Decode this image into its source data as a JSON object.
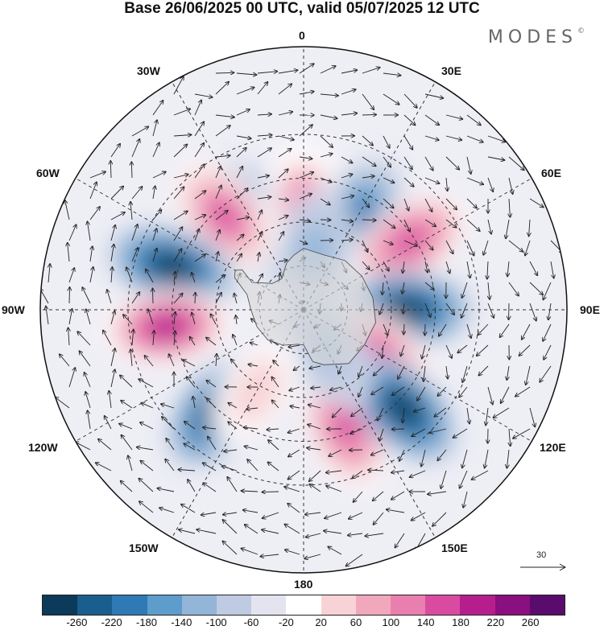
{
  "title": "Base 26/06/2025 00 UTC, valid 05/07/2025 12 UTC",
  "brand": "MODES",
  "brand_mark": "©",
  "longitude_labels": {
    "top": "0",
    "bottom": "180",
    "left": "90W",
    "right": "90E",
    "upper_left_1": "30W",
    "upper_left_2": "60W",
    "upper_right_1": "30E",
    "upper_right_2": "60E",
    "lower_left_1": "120W",
    "lower_left_2": "150W",
    "lower_right_1": "120E",
    "lower_right_2": "150E"
  },
  "wind_scale": {
    "label": "30"
  },
  "colorbar": {
    "colors": [
      "#0c3a5a",
      "#1a5e8e",
      "#2f7ab4",
      "#5d9ccb",
      "#93b6d8",
      "#bfcbe2",
      "#e4e4f0",
      "#ffffff",
      "#f8d3d6",
      "#f1a8bc",
      "#e97fae",
      "#d94ba1",
      "#b61e8e",
      "#8a0f7f",
      "#5a0c6e"
    ],
    "ticks": [
      "-260",
      "-220",
      "-180",
      "-140",
      "-100",
      "-60",
      "-20",
      "20",
      "60",
      "100",
      "140",
      "180",
      "220",
      "260"
    ]
  },
  "anomaly_centers": [
    {
      "lon": -30,
      "lat": -55,
      "value": -160
    },
    {
      "lon": 0,
      "lat": -55,
      "value": 170
    },
    {
      "lon": 30,
      "lat": -55,
      "value": -170
    },
    {
      "lon": -40,
      "lat": -48,
      "value": 190
    },
    {
      "lon": 57,
      "lat": -47,
      "value": 200
    },
    {
      "lon": -72,
      "lat": -43,
      "value": -240
    },
    {
      "lon": 10,
      "lat": -70,
      "value": -90
    },
    {
      "lon": 90,
      "lat": -55,
      "value": -230
    },
    {
      "lon": -97,
      "lat": -43,
      "value": 250
    },
    {
      "lon": 120,
      "lat": -62,
      "value": 190
    },
    {
      "lon": -140,
      "lat": -45,
      "value": -250
    },
    {
      "lon": 160,
      "lat": -48,
      "value": 200
    },
    {
      "lon": 135,
      "lat": -42,
      "value": -250
    },
    {
      "lon": 150,
      "lat": -75,
      "value": -70
    },
    {
      "lon": -150,
      "lat": -58,
      "value": 90
    }
  ]
}
